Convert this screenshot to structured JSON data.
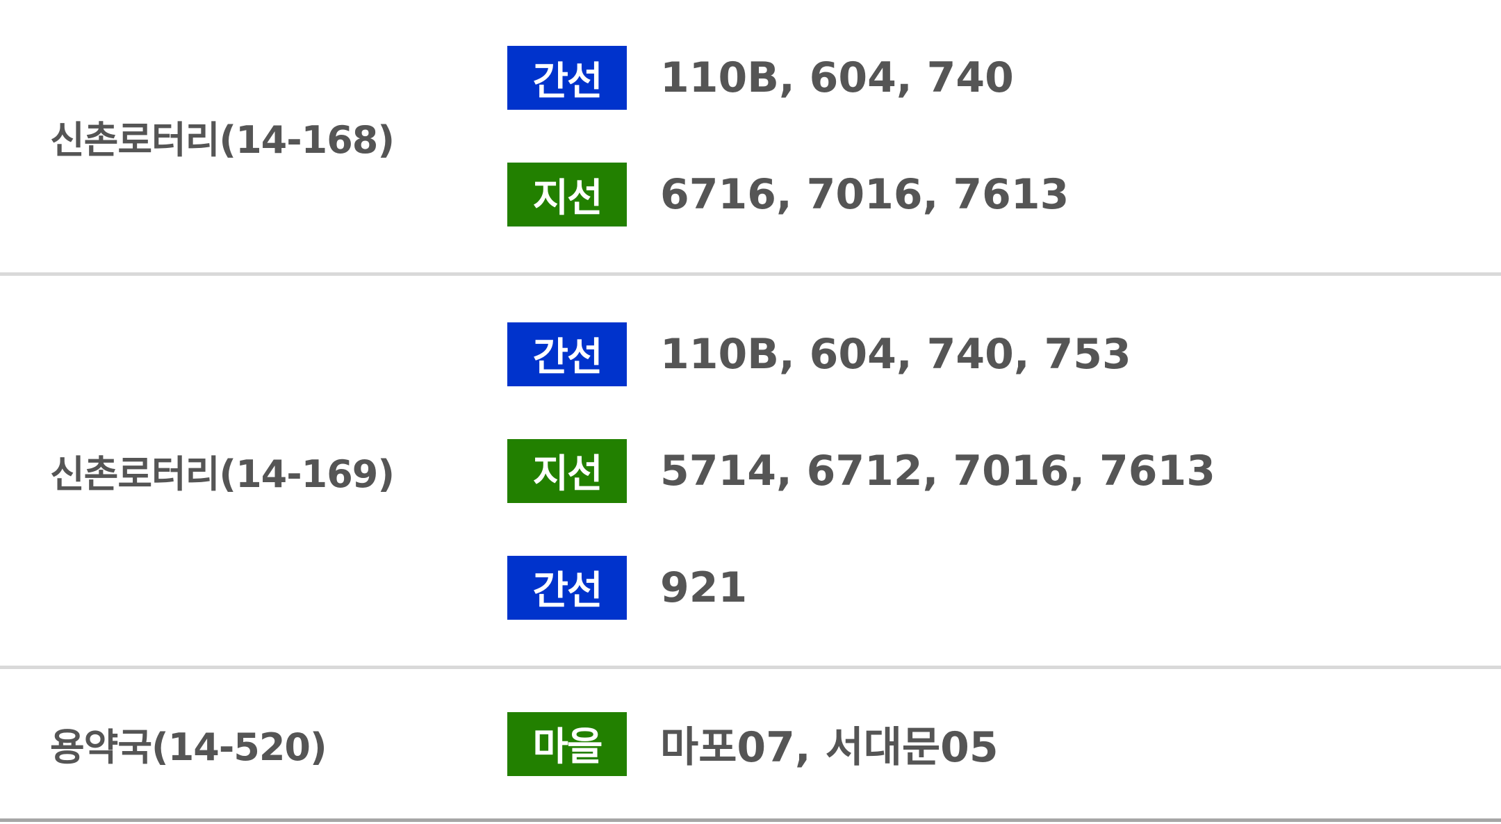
{
  "colors": {
    "trunk": "#0033cc",
    "branch": "#228000",
    "village": "#228000",
    "text": "#555555",
    "divider": "#d9d9d9"
  },
  "stops": [
    {
      "name": "신촌로터리(14-168)",
      "routes": [
        {
          "type": "간선",
          "color": "#0033cc",
          "numbers": "110B, 604, 740"
        },
        {
          "type": "지선",
          "color": "#228000",
          "numbers": "6716, 7016, 7613"
        }
      ]
    },
    {
      "name": "신촌로터리(14-169)",
      "routes": [
        {
          "type": "간선",
          "color": "#0033cc",
          "numbers": "110B, 604, 740, 753"
        },
        {
          "type": "지선",
          "color": "#228000",
          "numbers": "5714, 6712, 7016, 7613"
        },
        {
          "type": "간선",
          "color": "#0033cc",
          "numbers": "921"
        }
      ]
    },
    {
      "name": "용약국(14-520)",
      "routes": [
        {
          "type": "마을",
          "color": "#228000",
          "numbers": "마포07, 서대문05"
        }
      ]
    }
  ]
}
